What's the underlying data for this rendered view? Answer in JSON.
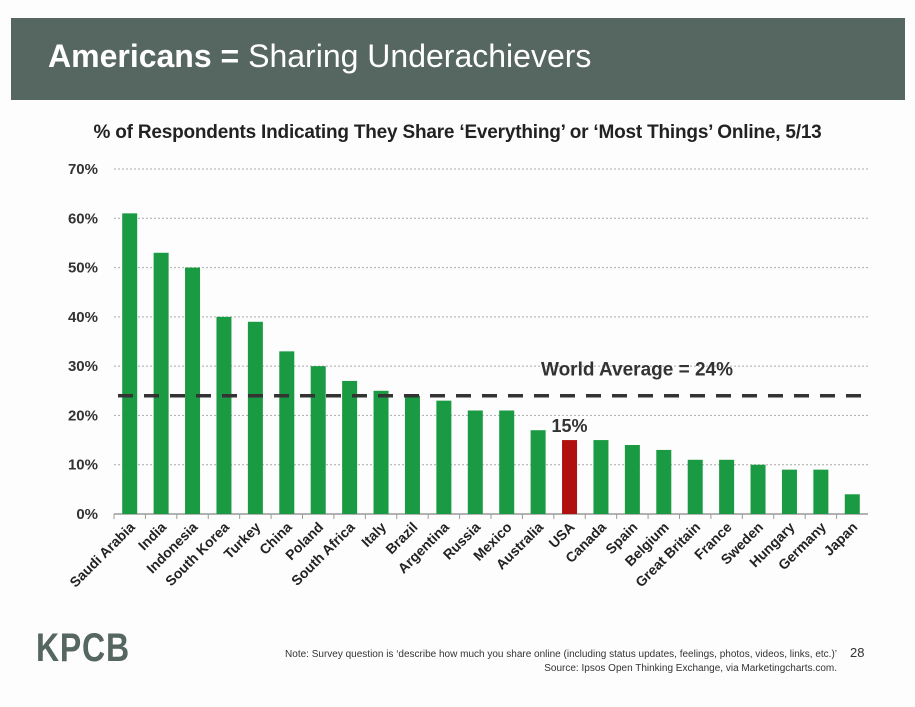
{
  "header": {
    "title_bold": "Americans =",
    "title_rest": " Sharing Underachievers"
  },
  "chart_data": {
    "type": "bar",
    "title": "% of Respondents Indicating They Share ‘Everything’ or ‘Most Things’ Online, 5/13",
    "categories": [
      "Saudi Arabia",
      "India",
      "Indonesia",
      "South Korea",
      "Turkey",
      "China",
      "Poland",
      "South Africa",
      "Italy",
      "Brazil",
      "Argentina",
      "Russia",
      "Mexico",
      "Australia",
      "USA",
      "Canada",
      "Spain",
      "Belgium",
      "Great Britain",
      "France",
      "Sweden",
      "Hungary",
      "Germany",
      "Japan"
    ],
    "values": [
      61,
      53,
      50,
      40,
      39,
      33,
      30,
      27,
      25,
      24,
      23,
      21,
      21,
      17,
      15,
      15,
      14,
      13,
      11,
      11,
      10,
      9,
      9,
      4
    ],
    "ylim": [
      0,
      70
    ],
    "yticks": [
      "0%",
      "10%",
      "20%",
      "30%",
      "40%",
      "50%",
      "60%",
      "70%"
    ],
    "grid": true,
    "bar_color": "#1a9a42",
    "highlight": {
      "category": "USA",
      "color": "#b0100f",
      "label": "15%"
    },
    "reference_line": {
      "value": 24,
      "label": "World Average = 24%",
      "color": "#333333"
    }
  },
  "footer": {
    "logo": "KPCB",
    "note": "Note: Survey question is ‘describe how much you share online (including status updates, feelings, photos, videos, links, etc.)’",
    "source": "Source: Ipsos Open Thinking Exchange, via Marketingcharts.com.",
    "page_number": "28"
  }
}
